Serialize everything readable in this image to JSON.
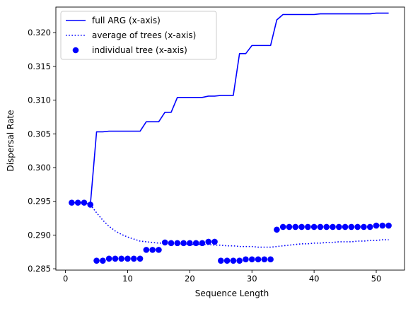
{
  "chart_data": {
    "type": "line",
    "xlabel": "Sequence Length",
    "ylabel": "Dispersal Rate",
    "xlim": [
      -1.55,
      54.55
    ],
    "ylim": [
      0.2848,
      0.3238
    ],
    "xticks": [
      0,
      10,
      20,
      30,
      40,
      50
    ],
    "yticks": [
      0.285,
      0.29,
      0.295,
      0.3,
      0.305,
      0.31,
      0.315,
      0.32
    ],
    "ytick_labels": [
      "0.285",
      "0.290",
      "0.295",
      "0.300",
      "0.305",
      "0.310",
      "0.315",
      "0.320"
    ],
    "grid": false,
    "legend_position": "top-left",
    "color": "#0000ff",
    "series": [
      {
        "name": "full ARG (x-axis)",
        "style": "solid",
        "x": [
          1,
          2,
          3,
          4,
          5,
          6,
          7,
          8,
          9,
          10,
          11,
          12,
          13,
          14,
          15,
          16,
          17,
          18,
          19,
          20,
          21,
          22,
          23,
          24,
          25,
          26,
          27,
          28,
          29,
          30,
          31,
          32,
          33,
          34,
          35,
          36,
          37,
          38,
          39,
          40,
          41,
          42,
          43,
          44,
          45,
          46,
          47,
          48,
          49,
          50,
          51,
          52
        ],
        "y": [
          0.2948,
          0.2948,
          0.2948,
          0.2945,
          0.3053,
          0.3053,
          0.3054,
          0.3054,
          0.3054,
          0.3054,
          0.3054,
          0.3054,
          0.3068,
          0.3068,
          0.3068,
          0.3082,
          0.3082,
          0.3104,
          0.3104,
          0.3104,
          0.3104,
          0.3104,
          0.3106,
          0.3106,
          0.3107,
          0.3107,
          0.3107,
          0.3169,
          0.3169,
          0.3181,
          0.3181,
          0.3181,
          0.3181,
          0.3219,
          0.3227,
          0.3227,
          0.3227,
          0.3227,
          0.3227,
          0.3227,
          0.3228,
          0.3228,
          0.3228,
          0.3228,
          0.3228,
          0.3228,
          0.3228,
          0.3228,
          0.3228,
          0.3229,
          0.3229,
          0.3229
        ]
      },
      {
        "name": "average of trees (x-axis)",
        "style": "dotted",
        "x": [
          4,
          5,
          6,
          7,
          8,
          9,
          10,
          11,
          12,
          13,
          14,
          15,
          16,
          17,
          18,
          19,
          20,
          21,
          22,
          23,
          24,
          25,
          26,
          27,
          28,
          29,
          30,
          31,
          32,
          33,
          34,
          35,
          36,
          37,
          38,
          39,
          40,
          41,
          42,
          43,
          44,
          45,
          46,
          47,
          48,
          49,
          50,
          51,
          52
        ],
        "y": [
          0.2945,
          0.2933,
          0.2922,
          0.2913,
          0.2906,
          0.2901,
          0.2897,
          0.2894,
          0.2891,
          0.289,
          0.2889,
          0.2888,
          0.2888,
          0.2887,
          0.2887,
          0.2887,
          0.2886,
          0.2886,
          0.2886,
          0.2886,
          0.2885,
          0.2885,
          0.2884,
          0.2884,
          0.2883,
          0.2883,
          0.2883,
          0.2882,
          0.2882,
          0.2882,
          0.2883,
          0.2884,
          0.2885,
          0.2886,
          0.2887,
          0.2887,
          0.2888,
          0.2888,
          0.2889,
          0.2889,
          0.289,
          0.289,
          0.289,
          0.2891,
          0.2891,
          0.2892,
          0.2892,
          0.2893,
          0.2893
        ]
      },
      {
        "name": "individual tree (x-axis)",
        "style": "markers",
        "x": [
          1,
          2,
          3,
          4,
          5,
          6,
          7,
          8,
          9,
          10,
          11,
          12,
          13,
          14,
          15,
          16,
          17,
          18,
          19,
          20,
          21,
          22,
          23,
          24,
          25,
          26,
          27,
          28,
          29,
          30,
          31,
          32,
          33,
          34,
          35,
          36,
          37,
          38,
          39,
          40,
          41,
          42,
          43,
          44,
          45,
          46,
          47,
          48,
          49,
          50,
          51,
          52
        ],
        "y": [
          0.2948,
          0.2948,
          0.2948,
          0.2945,
          0.2862,
          0.2862,
          0.2865,
          0.2865,
          0.2865,
          0.2865,
          0.2865,
          0.2865,
          0.2878,
          0.2878,
          0.2878,
          0.2889,
          0.2888,
          0.2888,
          0.2888,
          0.2888,
          0.2888,
          0.2888,
          0.289,
          0.289,
          0.2862,
          0.2862,
          0.2862,
          0.2862,
          0.2864,
          0.2864,
          0.2864,
          0.2864,
          0.2864,
          0.2908,
          0.2912,
          0.2912,
          0.2912,
          0.2912,
          0.2912,
          0.2912,
          0.2912,
          0.2912,
          0.2912,
          0.2912,
          0.2912,
          0.2912,
          0.2912,
          0.2912,
          0.2912,
          0.2914,
          0.2914,
          0.2914
        ]
      }
    ]
  }
}
